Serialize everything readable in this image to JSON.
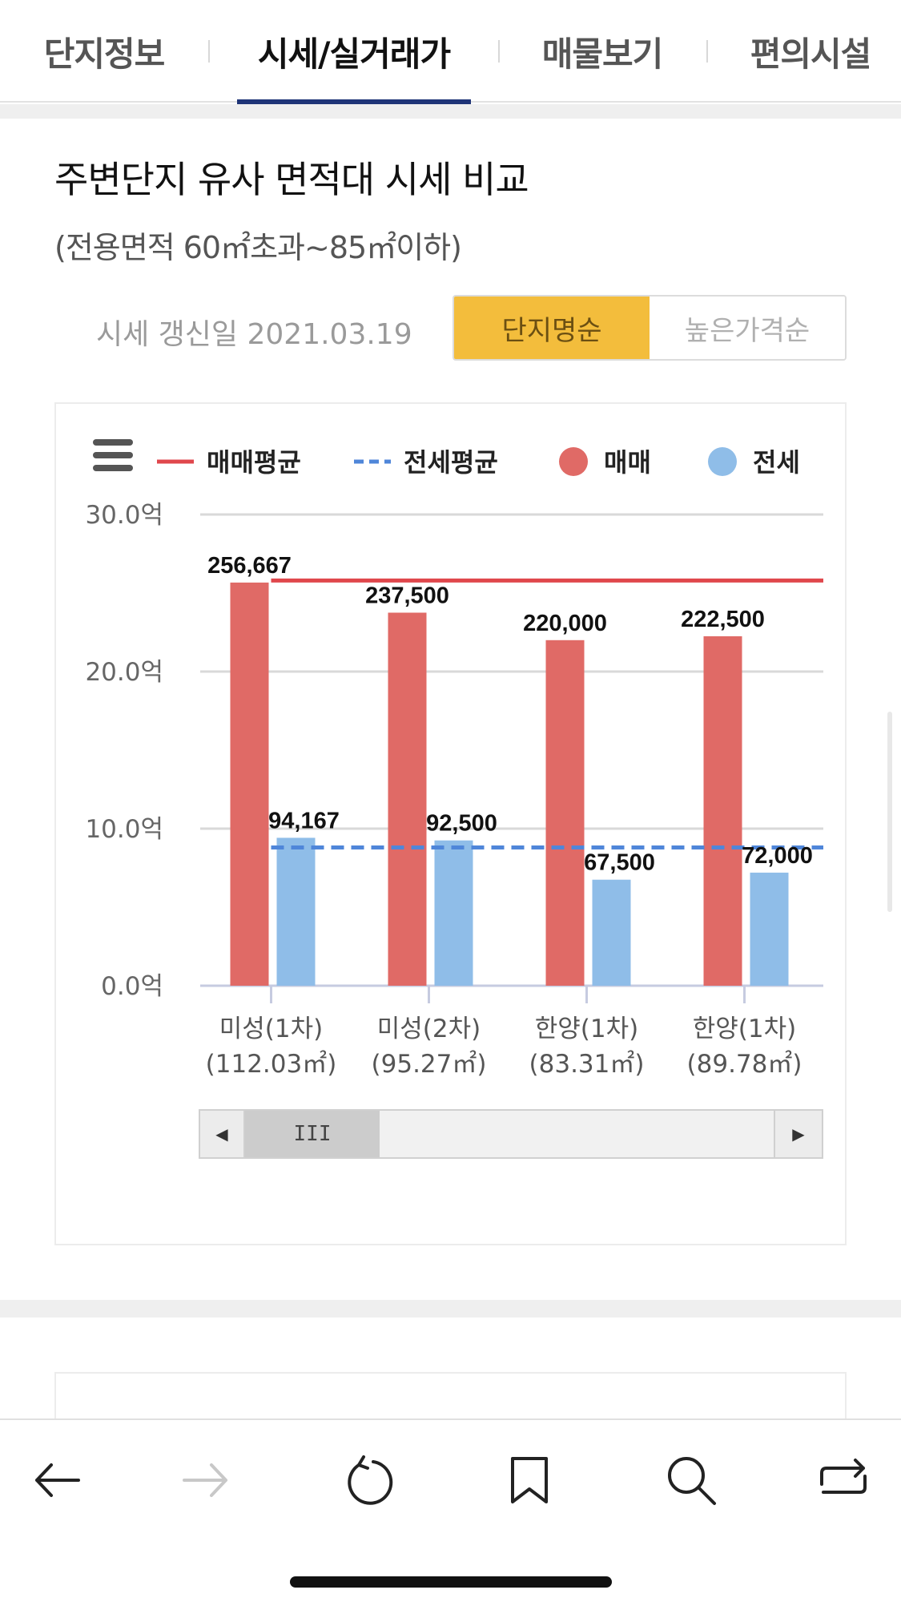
{
  "tabs": [
    {
      "label": "단지정보",
      "active": false
    },
    {
      "label": "시세/실거래가",
      "active": true
    },
    {
      "label": "매물보기",
      "active": false
    },
    {
      "label": "편의시설",
      "active": false
    }
  ],
  "section": {
    "title": "주변단지 유사 면적대 시세 비교",
    "subtitle": "(전용면적 60㎡초과~85㎡이하)",
    "update_text": "시세 갱신일 2021.03.19",
    "sort_options": [
      {
        "label": "단지명순",
        "active": true
      },
      {
        "label": "높은가격순",
        "active": false
      }
    ]
  },
  "colors": {
    "sale": "#e06a66",
    "lease": "#8fbde8",
    "sale_avg_line": "#e0474c",
    "lease_avg_line": "#4f86d9",
    "active_tab_underline": "#1f3477",
    "sort_active": "#f3bd3c"
  },
  "chart_data": {
    "type": "bar",
    "legend": [
      {
        "name": "매매평균",
        "marker": "line"
      },
      {
        "name": "전세평균",
        "marker": "dashed-line"
      },
      {
        "name": "매매",
        "marker": "circle"
      },
      {
        "name": "전세",
        "marker": "circle"
      }
    ],
    "categories": [
      {
        "name": "미성(1차)",
        "area": "(112.03㎡)"
      },
      {
        "name": "미성(2차)",
        "area": "(95.27㎡)"
      },
      {
        "name": "한양(1차)",
        "area": "(83.31㎡)"
      },
      {
        "name": "한양(1차)",
        "area": "(89.78㎡)"
      }
    ],
    "series": [
      {
        "name": "매매",
        "values": [
          256667,
          237500,
          220000,
          222500
        ],
        "labels": [
          "256,667",
          "237,500",
          "220,000",
          "222,500"
        ]
      },
      {
        "name": "전세",
        "values": [
          94167,
          92500,
          67500,
          72000
        ],
        "labels": [
          "94,167",
          "92,500",
          "67,500",
          "72,000"
        ]
      }
    ],
    "averages": {
      "매매평균": 258000,
      "전세평균": 88000
    },
    "y_ticks": [
      "0.0억",
      "10.0억",
      "20.0억",
      "30.0억"
    ],
    "ylim": [
      0,
      300000
    ],
    "grid": true,
    "legend_position": "top"
  },
  "scrollbar": {
    "thumb_label": "III",
    "left_arrow": "◀",
    "right_arrow": "▶"
  }
}
